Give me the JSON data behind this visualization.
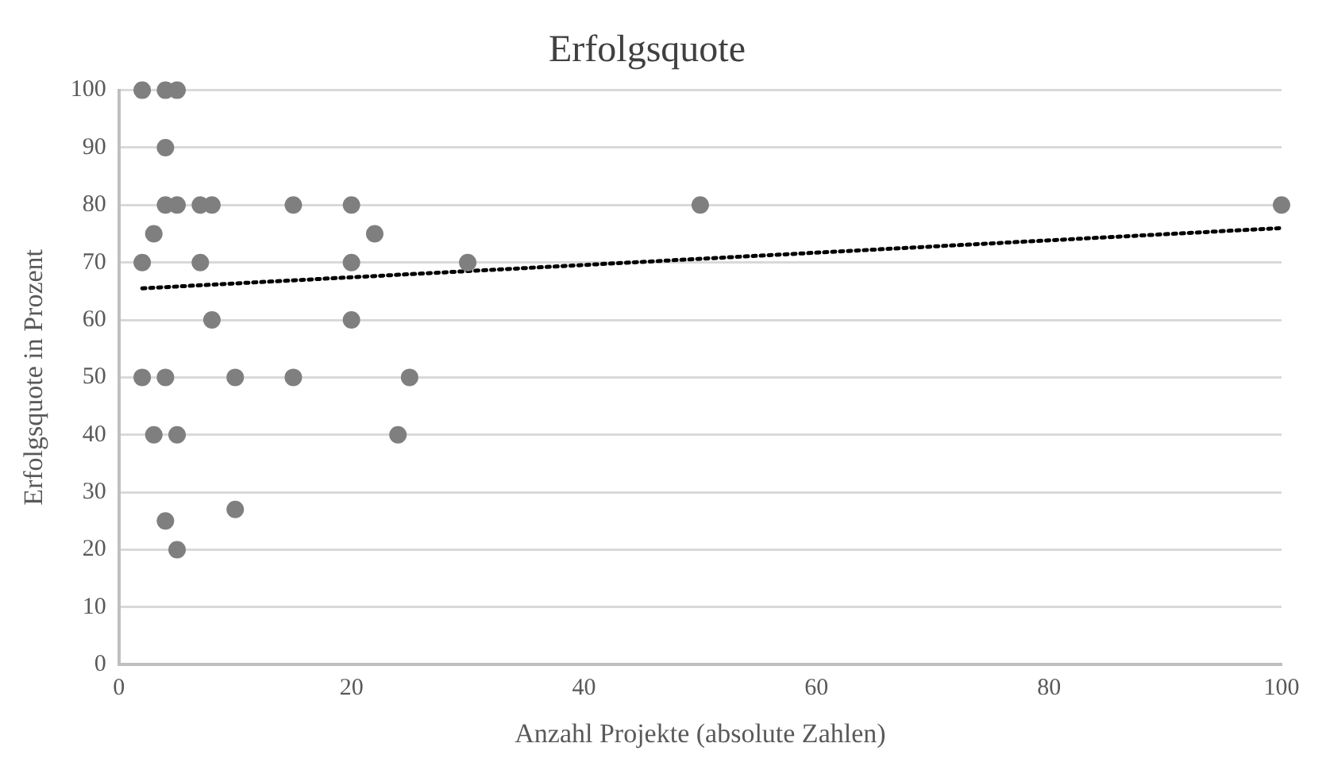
{
  "chart_data": {
    "type": "scatter",
    "title": "Erfolgsquote",
    "xlabel": "Anzahl Projekte (absolute Zahlen)",
    "ylabel": "Erfolgsquote in Prozent",
    "xlim": [
      0,
      100
    ],
    "xticks": [
      0,
      20,
      40,
      60,
      80,
      100
    ],
    "ylim": [
      0,
      100
    ],
    "yticks": [
      0,
      10,
      20,
      30,
      40,
      50,
      60,
      70,
      80,
      90,
      100
    ],
    "grid": "y",
    "legend": false,
    "marker": "circle",
    "series": [
      {
        "color": "#7f7f7f",
        "x": [
          2,
          4,
          5,
          4,
          4,
          5,
          7,
          8,
          15,
          20,
          50,
          100,
          3,
          22,
          2,
          7,
          20,
          30,
          8,
          20,
          2,
          4,
          10,
          15,
          25,
          3,
          5,
          24,
          4,
          10,
          5
        ],
        "values": [
          100,
          100,
          100,
          90,
          80,
          80,
          80,
          80,
          80,
          80,
          80,
          80,
          75,
          75,
          70,
          70,
          70,
          70,
          60,
          60,
          50,
          50,
          50,
          50,
          50,
          40,
          40,
          40,
          25,
          27,
          20
        ]
      },
      {
        "type": "line",
        "color": "#000000",
        "line_style": "dotted",
        "marker": "none",
        "x": [
          2,
          100
        ],
        "values": [
          65.5,
          76
        ]
      }
    ]
  }
}
